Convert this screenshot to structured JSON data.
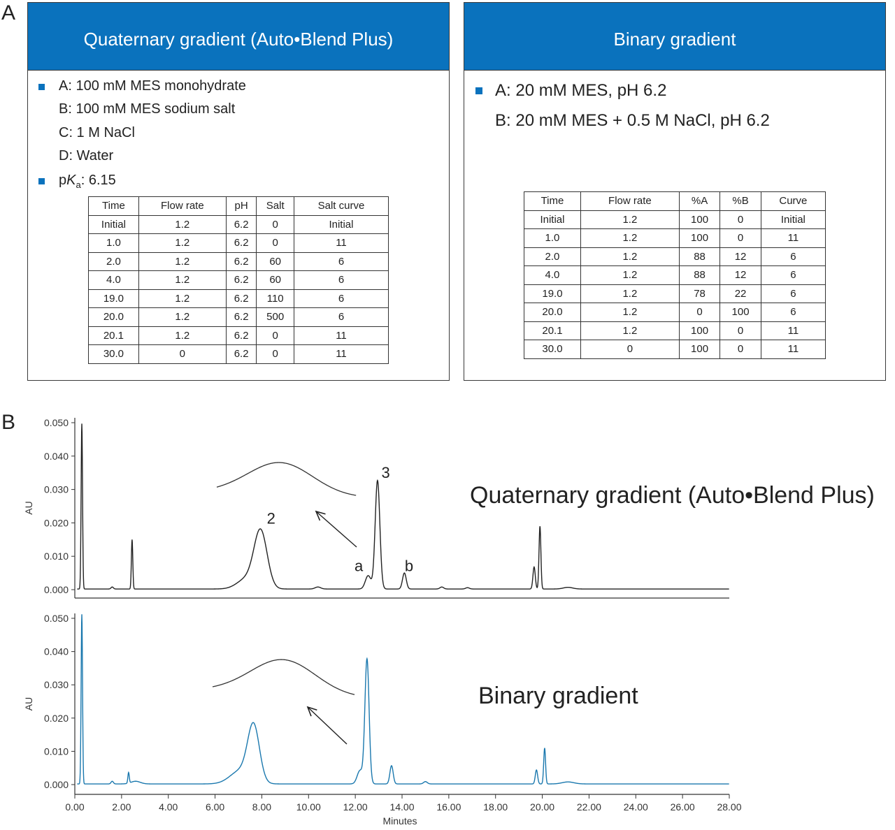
{
  "panel_labels": {
    "a": "A",
    "b": "B"
  },
  "quaternary": {
    "title": "Quaternary gradient (Auto•Blend Plus)",
    "solvents": [
      "A: 100 mM MES monohydrate",
      "B: 100 mM MES sodium salt",
      "C: 1 M NaCl",
      "D: Water"
    ],
    "pka": {
      "prefix": "p",
      "symbol": "K",
      "subscript": "a",
      "value": ": 6.15"
    },
    "table": {
      "headers": [
        "Time",
        "Flow rate",
        "pH",
        "Salt",
        "Salt curve"
      ],
      "rows": [
        [
          "Initial",
          "1.2",
          "6.2",
          "0",
          "Initial"
        ],
        [
          "1.0",
          "1.2",
          "6.2",
          "0",
          "11"
        ],
        [
          "2.0",
          "1.2",
          "6.2",
          "60",
          "6"
        ],
        [
          "4.0",
          "1.2",
          "6.2",
          "60",
          "6"
        ],
        [
          "19.0",
          "1.2",
          "6.2",
          "110",
          "6"
        ],
        [
          "20.0",
          "1.2",
          "6.2",
          "500",
          "6"
        ],
        [
          "20.1",
          "1.2",
          "6.2",
          "0",
          "11"
        ],
        [
          "30.0",
          "0",
          "6.2",
          "0",
          "11"
        ]
      ]
    }
  },
  "binary": {
    "title": "Binary gradient",
    "solvents": [
      "A: 20 mM MES, pH 6.2",
      "B: 20 mM MES + 0.5 M NaCl, pH 6.2"
    ],
    "table": {
      "headers": [
        "Time",
        "Flow rate",
        "%A",
        "%B",
        "Curve"
      ],
      "rows": [
        [
          "Initial",
          "1.2",
          "100",
          "0",
          "Initial"
        ],
        [
          "1.0",
          "1.2",
          "100",
          "0",
          "11"
        ],
        [
          "2.0",
          "1.2",
          "88",
          "12",
          "6"
        ],
        [
          "4.0",
          "1.2",
          "88",
          "12",
          "6"
        ],
        [
          "19.0",
          "1.2",
          "78",
          "22",
          "6"
        ],
        [
          "20.0",
          "1.2",
          "0",
          "100",
          "6"
        ],
        [
          "20.1",
          "1.2",
          "100",
          "0",
          "11"
        ],
        [
          "30.0",
          "0",
          "100",
          "0",
          "11"
        ]
      ]
    }
  },
  "colors": {
    "accent": "#0a72bd",
    "trace_top": "#222222",
    "trace_bottom": "#1a78ae"
  },
  "chart_data": [
    {
      "type": "line",
      "title": "Quaternary gradient (Auto•Blend Plus)",
      "xlabel": "Minutes",
      "ylabel": "AU",
      "xlim": [
        0,
        28
      ],
      "ylim": [
        -0.002,
        0.051
      ],
      "yticks": [
        "0.000",
        "0.010",
        "0.020",
        "0.030",
        "0.040",
        "0.050"
      ],
      "baseline": 0.0002,
      "peaks": [
        {
          "x": 0.3,
          "y": 0.0495,
          "w": 0.03
        },
        {
          "x": 1.6,
          "y": 0.0006,
          "w": 0.05
        },
        {
          "x": 2.45,
          "y": 0.0148,
          "w": 0.03
        },
        {
          "x": 7.95,
          "y": 0.017,
          "w": 0.28
        },
        {
          "x": 7.35,
          "y": 0.003,
          "w": 0.4
        },
        {
          "x": 10.4,
          "y": 0.0006,
          "w": 0.12
        },
        {
          "x": 12.55,
          "y": 0.004,
          "w": 0.12
        },
        {
          "x": 12.95,
          "y": 0.0325,
          "w": 0.1
        },
        {
          "x": 14.1,
          "y": 0.0048,
          "w": 0.08
        },
        {
          "x": 15.7,
          "y": 0.0006,
          "w": 0.08
        },
        {
          "x": 16.8,
          "y": 0.0004,
          "w": 0.08
        },
        {
          "x": 19.65,
          "y": 0.0066,
          "w": 0.05
        },
        {
          "x": 19.9,
          "y": 0.0188,
          "w": 0.04
        },
        {
          "x": 21.1,
          "y": 0.0005,
          "w": 0.2
        }
      ],
      "annotations": [
        {
          "label": "2",
          "x": 8.4,
          "y": 0.0198
        },
        {
          "label": "3",
          "x": 13.3,
          "y": 0.0335
        },
        {
          "label": "a",
          "x": 12.15,
          "y": 0.0055
        },
        {
          "label": "b",
          "x": 14.3,
          "y": 0.0055
        }
      ]
    },
    {
      "type": "line",
      "title": "Binary gradient",
      "xlabel": "Minutes",
      "ylabel": "AU",
      "xlim": [
        0,
        28
      ],
      "ylim": [
        -0.002,
        0.051
      ],
      "yticks": [
        "0.000",
        "0.010",
        "0.020",
        "0.030",
        "0.040",
        "0.050"
      ],
      "xticks": [
        "0.00",
        "2.00",
        "4.00",
        "6.00",
        "8.00",
        "10.00",
        "12.00",
        "14.00",
        "16.00",
        "18.00",
        "20.00",
        "22.00",
        "24.00",
        "26.00",
        "28.00"
      ],
      "baseline": 0.0002,
      "peaks": [
        {
          "x": 0.3,
          "y": 0.051,
          "w": 0.03
        },
        {
          "x": 1.6,
          "y": 0.0008,
          "w": 0.05
        },
        {
          "x": 2.3,
          "y": 0.0032,
          "w": 0.03
        },
        {
          "x": 2.6,
          "y": 0.0008,
          "w": 0.2
        },
        {
          "x": 7.65,
          "y": 0.0165,
          "w": 0.25
        },
        {
          "x": 7.1,
          "y": 0.004,
          "w": 0.45
        },
        {
          "x": 12.2,
          "y": 0.004,
          "w": 0.12
        },
        {
          "x": 12.5,
          "y": 0.0375,
          "w": 0.09
        },
        {
          "x": 13.55,
          "y": 0.0055,
          "w": 0.07
        },
        {
          "x": 15.0,
          "y": 0.0007,
          "w": 0.08
        },
        {
          "x": 19.75,
          "y": 0.0042,
          "w": 0.05
        },
        {
          "x": 20.1,
          "y": 0.0108,
          "w": 0.04
        },
        {
          "x": 21.1,
          "y": 0.0006,
          "w": 0.25
        }
      ]
    }
  ]
}
